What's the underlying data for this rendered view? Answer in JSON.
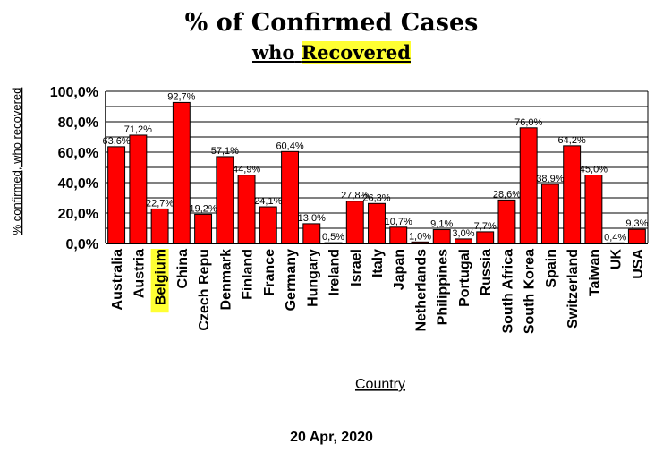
{
  "chart_data": {
    "type": "bar",
    "title": "% of Confirmed Cases",
    "subtitle_prefix": "who",
    "subtitle_highlight": "Recovered",
    "xlabel": "Country",
    "ylabel": "% confirmed, who recovered",
    "date": "20 Apr, 2020",
    "ylim": [
      0,
      100
    ],
    "ytick_labels": [
      "0,0%",
      "20,0%",
      "40,0%",
      "60,0%",
      "80,0%",
      "100,0%"
    ],
    "categories": [
      "Australia",
      "Austria",
      "Belgium",
      "China",
      "Czech Repu",
      "Denmark",
      "Finland",
      "France",
      "Germany",
      "Hungary",
      "Ireland",
      "Israel",
      "Italy",
      "Japan",
      "Netherlands",
      "Philippines",
      "Portugal",
      "Russia",
      "South Africa",
      "South Korea",
      "Spain",
      "Switzerland",
      "Taiwan",
      "UK",
      "USA"
    ],
    "values": [
      63.6,
      71.2,
      22.7,
      92.7,
      19.2,
      57.1,
      44.9,
      24.1,
      60.4,
      13.0,
      0.5,
      27.8,
      26.3,
      10.7,
      1.0,
      9.1,
      3.0,
      7.7,
      28.6,
      76.0,
      38.9,
      64.2,
      45.0,
      0.4,
      9.3
    ],
    "value_labels": [
      "63,6%",
      "71,2%",
      "22,7%",
      "92,7%",
      "19,2%",
      "57,1%",
      "44,9%",
      "24,1%",
      "60,4%",
      "13,0%",
      "0,5%",
      "27,8%",
      "26,3%",
      "10,7%",
      "1,0%",
      "9,1%",
      "3,0%",
      "7,7%",
      "28,6%",
      "76,0%",
      "38,9%",
      "64,2%",
      "45,0%",
      "0,4%",
      "9,3%"
    ],
    "highlight_category": "Belgium",
    "grid": true,
    "bar_color": "#ff0000",
    "highlight_color": "#ffff33"
  }
}
